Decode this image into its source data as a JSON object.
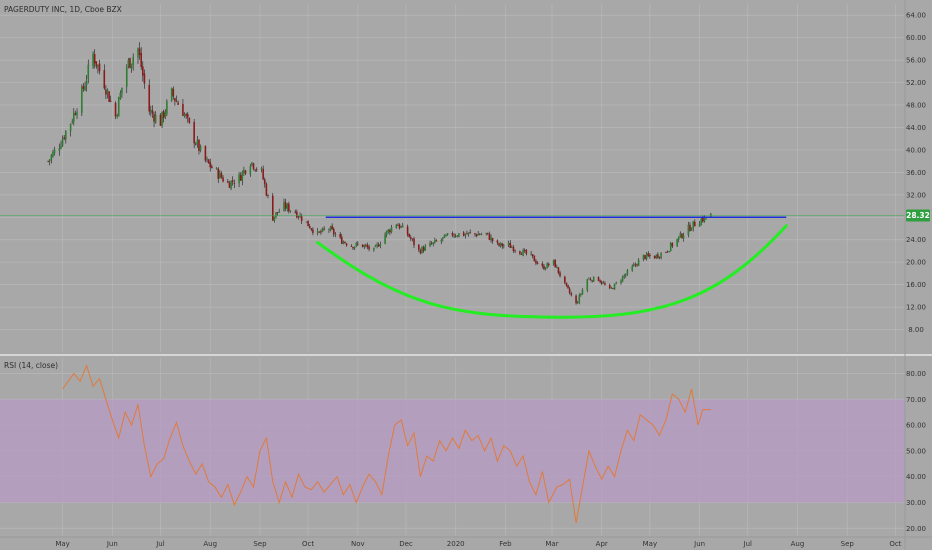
{
  "header": {
    "symbol_title": "PAGERDUTY INC, 1D, Cboe BZX"
  },
  "rsi_panel": {
    "title": "RSI (14, close)"
  },
  "price_badge": "28.32",
  "colors": {
    "background": "#a8a8a8",
    "grid": "#b8b8b8",
    "candle_up": "#2e7d32",
    "candle_down": "#8b1a1a",
    "resistance_line": "#1f2fd6",
    "cup_curve": "#22ee22",
    "price_line": "#3aa84a",
    "rsi_line": "#e07a3c",
    "rsi_band": "#b79cc4"
  },
  "chart_data": [
    {
      "type": "candlestick",
      "title": "PAGERDUTY INC, 1D, Cboe BZX",
      "x_tick_labels": [
        "May",
        "Jun",
        "Jul",
        "Aug",
        "Sep",
        "Oct",
        "Nov",
        "Dec",
        "2020",
        "Feb",
        "Mar",
        "Apr",
        "May",
        "Jun",
        "Jul",
        "Aug",
        "Sep",
        "Oct"
      ],
      "y_tick_labels": [
        "8.00",
        "12.00",
        "16.00",
        "20.00",
        "24.00",
        "28.00",
        "32.00",
        "36.00",
        "40.00",
        "44.00",
        "48.00",
        "52.00",
        "56.00",
        "60.00",
        "64.00"
      ],
      "ylim": [
        4,
        66
      ],
      "last_price": 28.32,
      "close_path": [
        [
          "2019-04-22",
          38
        ],
        [
          "2019-04-29",
          41
        ],
        [
          "2019-05-06",
          45
        ],
        [
          "2019-05-13",
          50
        ],
        [
          "2019-05-20",
          57
        ],
        [
          "2019-05-27",
          52
        ],
        [
          "2019-06-03",
          46
        ],
        [
          "2019-06-10",
          55
        ],
        [
          "2019-06-17",
          58
        ],
        [
          "2019-06-24",
          47
        ],
        [
          "2019-07-01",
          45
        ],
        [
          "2019-07-08",
          50
        ],
        [
          "2019-07-15",
          47
        ],
        [
          "2019-07-22",
          42
        ],
        [
          "2019-07-29",
          38
        ],
        [
          "2019-08-05",
          36
        ],
        [
          "2019-08-12",
          34
        ],
        [
          "2019-08-19",
          35
        ],
        [
          "2019-08-26",
          38
        ],
        [
          "2019-09-02",
          36
        ],
        [
          "2019-09-09",
          28
        ],
        [
          "2019-09-16",
          30
        ],
        [
          "2019-09-23",
          29
        ],
        [
          "2019-09-30",
          27
        ],
        [
          "2019-10-07",
          25
        ],
        [
          "2019-10-14",
          26
        ],
        [
          "2019-10-21",
          24
        ],
        [
          "2019-10-28",
          23
        ],
        [
          "2019-11-04",
          23
        ],
        [
          "2019-11-11",
          22
        ],
        [
          "2019-11-18",
          25
        ],
        [
          "2019-11-25",
          27
        ],
        [
          "2019-12-02",
          25
        ],
        [
          "2019-12-09",
          22
        ],
        [
          "2019-12-16",
          23
        ],
        [
          "2019-12-23",
          24
        ],
        [
          "2019-12-30",
          25
        ],
        [
          "2020-01-06",
          25
        ],
        [
          "2020-01-13",
          25
        ],
        [
          "2020-01-20",
          25
        ],
        [
          "2020-01-27",
          23
        ],
        [
          "2020-02-03",
          23
        ],
        [
          "2020-02-10",
          22
        ],
        [
          "2020-02-17",
          21
        ],
        [
          "2020-02-24",
          19
        ],
        [
          "2020-03-02",
          20
        ],
        [
          "2020-03-09",
          16
        ],
        [
          "2020-03-16",
          12.5
        ],
        [
          "2020-03-23",
          17
        ],
        [
          "2020-03-30",
          17
        ],
        [
          "2020-04-06",
          15
        ],
        [
          "2020-04-13",
          17
        ],
        [
          "2020-04-20",
          19
        ],
        [
          "2020-04-27",
          21
        ],
        [
          "2020-05-04",
          21
        ],
        [
          "2020-05-11",
          22
        ],
        [
          "2020-05-18",
          24
        ],
        [
          "2020-05-25",
          26
        ],
        [
          "2020-06-01",
          27.5
        ],
        [
          "2020-06-08",
          28.3
        ]
      ],
      "annotations": [
        {
          "name": "resistance-line",
          "from": [
            "2019-10-12",
            28.0
          ],
          "to": [
            "2020-07-25",
            28.0
          ]
        },
        {
          "name": "cup-curve",
          "from": [
            "2019-10-07",
            23.5
          ],
          "bottom": [
            "2020-03-08",
            10.2
          ],
          "to": [
            "2020-07-25",
            26.5
          ]
        }
      ]
    },
    {
      "type": "line",
      "title": "RSI (14, close)",
      "y_tick_labels": [
        "20.00",
        "30.00",
        "40.00",
        "50.00",
        "60.00",
        "70.00",
        "80.00"
      ],
      "ylim": [
        17,
        86
      ],
      "band": [
        30,
        70
      ],
      "series": [
        {
          "values": [
            [
              "2019-05-01",
              74
            ],
            [
              "2019-05-08",
              80
            ],
            [
              "2019-05-12",
              77
            ],
            [
              "2019-05-16",
              83
            ],
            [
              "2019-05-20",
              75
            ],
            [
              "2019-05-24",
              78
            ],
            [
              "2019-05-28",
              70
            ],
            [
              "2019-06-01",
              62
            ],
            [
              "2019-06-05",
              55
            ],
            [
              "2019-06-09",
              65
            ],
            [
              "2019-06-13",
              60
            ],
            [
              "2019-06-17",
              68
            ],
            [
              "2019-06-21",
              52
            ],
            [
              "2019-06-25",
              40
            ],
            [
              "2019-06-29",
              45
            ],
            [
              "2019-07-03",
              47
            ],
            [
              "2019-07-07",
              55
            ],
            [
              "2019-07-11",
              61
            ],
            [
              "2019-07-15",
              52
            ],
            [
              "2019-07-19",
              46
            ],
            [
              "2019-07-23",
              41
            ],
            [
              "2019-07-27",
              45
            ],
            [
              "2019-07-31",
              38
            ],
            [
              "2019-08-04",
              36
            ],
            [
              "2019-08-08",
              32
            ],
            [
              "2019-08-12",
              37
            ],
            [
              "2019-08-16",
              29
            ],
            [
              "2019-08-20",
              34
            ],
            [
              "2019-08-24",
              40
            ],
            [
              "2019-08-28",
              36
            ],
            [
              "2019-09-01",
              50
            ],
            [
              "2019-09-05",
              55
            ],
            [
              "2019-09-09",
              38
            ],
            [
              "2019-09-13",
              30
            ],
            [
              "2019-09-17",
              38
            ],
            [
              "2019-09-21",
              32
            ],
            [
              "2019-09-25",
              41
            ],
            [
              "2019-09-29",
              36
            ],
            [
              "2019-10-03",
              35
            ],
            [
              "2019-10-07",
              38
            ],
            [
              "2019-10-11",
              34
            ],
            [
              "2019-10-15",
              37
            ],
            [
              "2019-10-19",
              40
            ],
            [
              "2019-10-23",
              33
            ],
            [
              "2019-10-27",
              37
            ],
            [
              "2019-10-31",
              30
            ],
            [
              "2019-11-04",
              36
            ],
            [
              "2019-11-08",
              41
            ],
            [
              "2019-11-12",
              38
            ],
            [
              "2019-11-16",
              33
            ],
            [
              "2019-11-20",
              48
            ],
            [
              "2019-11-24",
              60
            ],
            [
              "2019-11-28",
              62
            ],
            [
              "2019-12-02",
              52
            ],
            [
              "2019-12-06",
              57
            ],
            [
              "2019-12-10",
              40
            ],
            [
              "2019-12-14",
              48
            ],
            [
              "2019-12-18",
              46
            ],
            [
              "2019-12-22",
              54
            ],
            [
              "2019-12-26",
              50
            ],
            [
              "2019-12-30",
              55
            ],
            [
              "2020-01-03",
              51
            ],
            [
              "2020-01-07",
              58
            ],
            [
              "2020-01-11",
              54
            ],
            [
              "2020-01-15",
              56
            ],
            [
              "2020-01-19",
              50
            ],
            [
              "2020-01-23",
              55
            ],
            [
              "2020-01-27",
              46
            ],
            [
              "2020-01-31",
              52
            ],
            [
              "2020-02-04",
              50
            ],
            [
              "2020-02-08",
              44
            ],
            [
              "2020-02-12",
              48
            ],
            [
              "2020-02-16",
              38
            ],
            [
              "2020-02-20",
              33
            ],
            [
              "2020-02-24",
              42
            ],
            [
              "2020-02-28",
              30
            ],
            [
              "2020-03-04",
              36
            ],
            [
              "2020-03-08",
              37
            ],
            [
              "2020-03-12",
              39
            ],
            [
              "2020-03-16",
              22
            ],
            [
              "2020-03-20",
              36
            ],
            [
              "2020-03-24",
              50
            ],
            [
              "2020-03-28",
              44
            ],
            [
              "2020-04-01",
              39
            ],
            [
              "2020-04-05",
              44
            ],
            [
              "2020-04-09",
              40
            ],
            [
              "2020-04-13",
              50
            ],
            [
              "2020-04-17",
              58
            ],
            [
              "2020-04-21",
              54
            ],
            [
              "2020-04-25",
              64
            ],
            [
              "2020-04-29",
              62
            ],
            [
              "2020-05-03",
              60
            ],
            [
              "2020-05-07",
              56
            ],
            [
              "2020-05-11",
              62
            ],
            [
              "2020-05-15",
              72
            ],
            [
              "2020-05-19",
              70
            ],
            [
              "2020-05-23",
              65
            ],
            [
              "2020-05-27",
              74
            ],
            [
              "2020-05-31",
              60
            ],
            [
              "2020-06-03",
              66
            ],
            [
              "2020-06-08",
              66
            ]
          ]
        }
      ]
    }
  ]
}
